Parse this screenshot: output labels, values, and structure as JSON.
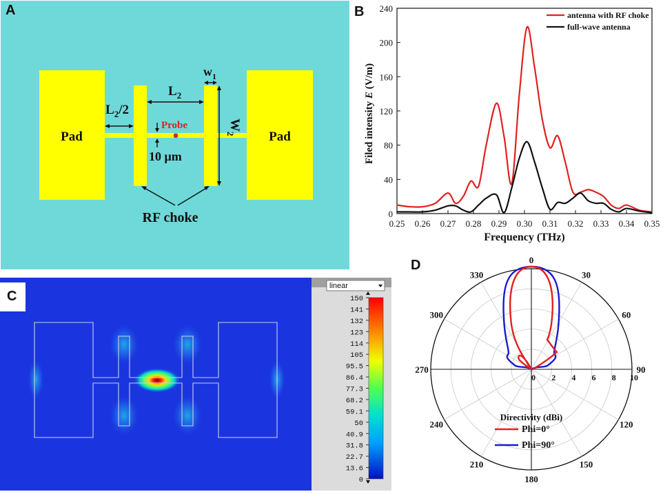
{
  "panels": {
    "a": {
      "letter": "A",
      "pad_left_label": "Pad",
      "pad_right_label": "Pad",
      "probe_label": "Probe",
      "gap_label": "10 μm",
      "rf_choke_label": "RF choke",
      "l2_half": {
        "main": "L",
        "sub": "2",
        "suffix": "/2"
      },
      "l2": {
        "main": "L",
        "sub": "2"
      },
      "w1": {
        "main": "w",
        "sub": "1"
      },
      "w2": {
        "main": "W",
        "sub": "2"
      },
      "colors": {
        "background": "#6fd9d9",
        "metal": "#ffff00",
        "probe": "#e02020"
      }
    },
    "b": {
      "letter": "B"
    },
    "c": {
      "letter": "C",
      "dropdown_label": "linear",
      "colorbar_ticks": [
        "150",
        "141",
        "132",
        "123",
        "114",
        "105",
        "95.5",
        "86.4",
        "77.3",
        "68.2",
        "59.1",
        "50",
        "40.9",
        "31.8",
        "22.7",
        "13.6",
        "0"
      ],
      "colors": {
        "background": "#1a35e0"
      }
    },
    "d": {
      "letter": "D",
      "angle_labels": [
        "0",
        "30",
        "60",
        "90",
        "120",
        "150",
        "180",
        "210",
        "240",
        "270",
        "300",
        "330"
      ],
      "radial_labels": [
        "0",
        "2",
        "4",
        "6",
        "8",
        "10"
      ],
      "legend_title": "Directivity (dBi)",
      "legend": [
        {
          "label": "Phi=0°",
          "color": "#e02020"
        },
        {
          "label": "Phi=90°",
          "color": "#1a1ad0"
        }
      ]
    }
  },
  "chart_data": {
    "type": "line",
    "title": "",
    "xlabel": "Frequency (THz)",
    "ylabel_prefix": "Filed intensity ",
    "ylabel_var": "E",
    "ylabel_suffix": " (V/m)",
    "xlim": [
      0.25,
      0.35
    ],
    "ylim": [
      0,
      240
    ],
    "xticks": [
      "0.25",
      "0.26",
      "0.27",
      "0.28",
      "0.29",
      "0.30",
      "0.31",
      "0.32",
      "0.33",
      "0.34",
      "0.35"
    ],
    "yticks": [
      "0",
      "40",
      "80",
      "120",
      "160",
      "200",
      "240"
    ],
    "legend_position": "top-right",
    "series": [
      {
        "name": "antenna with RF choke",
        "color": "#e02020",
        "x": [
          0.25,
          0.255,
          0.26,
          0.265,
          0.27,
          0.273,
          0.276,
          0.279,
          0.282,
          0.285,
          0.289,
          0.292,
          0.295,
          0.298,
          0.301,
          0.304,
          0.307,
          0.31,
          0.313,
          0.316,
          0.319,
          0.322,
          0.325,
          0.328,
          0.331,
          0.334,
          0.337,
          0.34,
          0.345,
          0.35
        ],
        "y": [
          10,
          8,
          8,
          12,
          24,
          12,
          20,
          38,
          32,
          80,
          129,
          90,
          35,
          140,
          218,
          170,
          110,
          77,
          91,
          60,
          25,
          25,
          28,
          25,
          20,
          10,
          6,
          10,
          4,
          2
        ]
      },
      {
        "name": "full-wave antenna",
        "color": "#111111",
        "x": [
          0.25,
          0.255,
          0.26,
          0.265,
          0.27,
          0.273,
          0.276,
          0.279,
          0.282,
          0.285,
          0.289,
          0.292,
          0.295,
          0.298,
          0.301,
          0.304,
          0.307,
          0.31,
          0.313,
          0.316,
          0.319,
          0.322,
          0.325,
          0.328,
          0.331,
          0.334,
          0.337,
          0.34,
          0.345,
          0.35
        ],
        "y": [
          2,
          2,
          2,
          4,
          9,
          9,
          4,
          2,
          10,
          18,
          22,
          1,
          30,
          65,
          84,
          60,
          30,
          5,
          13,
          12,
          18,
          24,
          15,
          12,
          12,
          5,
          2,
          6,
          3,
          1
        ]
      }
    ]
  }
}
